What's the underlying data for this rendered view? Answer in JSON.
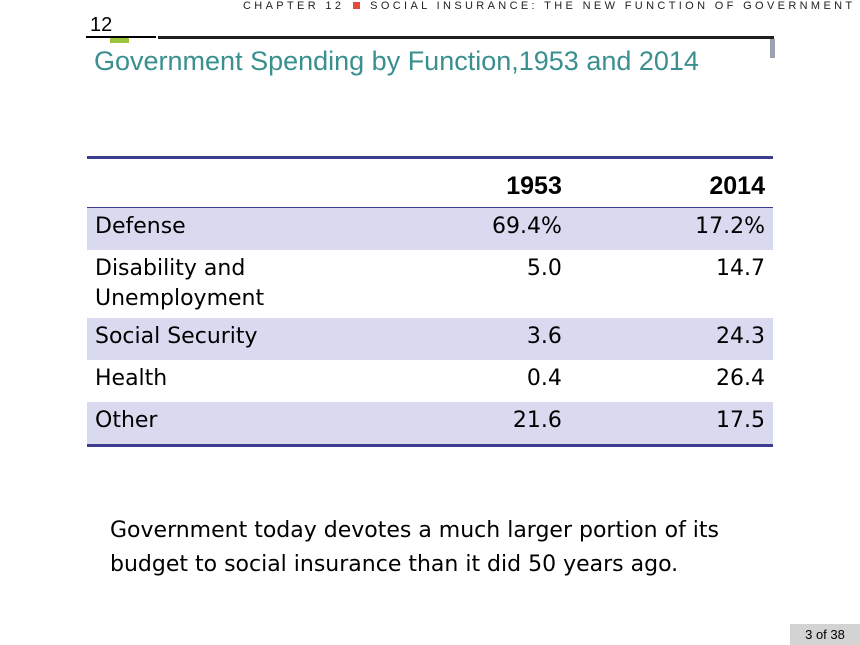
{
  "header": {
    "chapter_number": "12",
    "chapter_label": "CHAPTER 12",
    "chapter_title": "SOCIAL INSURANCE: THE NEW FUNCTION OF GOVERNMENT"
  },
  "slide": {
    "title": "Government Spending by Function,1953 and 2014"
  },
  "table": {
    "headers": [
      "",
      "1953",
      "2014"
    ],
    "rows": [
      {
        "label": "Defense",
        "v1953": "69.4%",
        "v2014": "17.2%"
      },
      {
        "label": "Disability and Unemployment",
        "v1953": "5.0",
        "v2014": "14.7"
      },
      {
        "label": "Social Security",
        "v1953": "3.6",
        "v2014": "24.3"
      },
      {
        "label": "Health",
        "v1953": "0.4",
        "v2014": "26.4"
      },
      {
        "label": "Other",
        "v1953": "21.6",
        "v2014": "17.5"
      }
    ]
  },
  "note": "Government today devotes a much larger portion of its budget to social insurance than it did 50 years ago.",
  "footer": {
    "page": "3 of 38"
  },
  "colors": {
    "title": "#3a8f8f",
    "shade": "#d9daf0",
    "table_rule": "#3b3b8f",
    "bullet": "#e8473b",
    "green_mark": "#9bc33c"
  }
}
